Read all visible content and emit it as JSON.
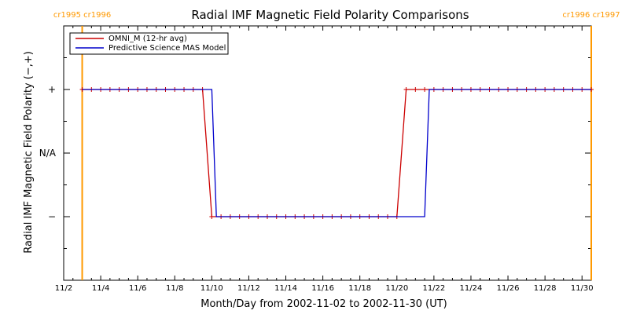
{
  "chart_data": {
    "type": "line",
    "title": "Radial IMF Magnetic Field Polarity Comparisons",
    "xlabel": "Month/Day from 2002-11-02 to 2002-11-30 (UT)",
    "ylabel": "Radial IMF Magnetic Field Polarity (−,+)",
    "x_range": [
      "2002-11-02",
      "2002-11-30"
    ],
    "x_ticks": [
      "11/2",
      "11/4",
      "11/6",
      "11/8",
      "11/10",
      "11/12",
      "11/14",
      "11/16",
      "11/18",
      "11/20",
      "11/22",
      "11/24",
      "11/26",
      "11/28",
      "11/30"
    ],
    "y_categories": [
      "−",
      "N/A",
      "+"
    ],
    "y_values": [
      -1,
      0,
      1
    ],
    "ylim": [
      -2,
      2
    ],
    "legend": {
      "position": "top-left"
    },
    "carrington_markers": [
      {
        "label": "cr1995 cr1996",
        "date": "2002-11-03 00:00",
        "color": "#ff9900"
      },
      {
        "label": "cr1996 cr1997",
        "date": "2002-11-30 12:00",
        "color": "#ff9900"
      }
    ],
    "series": [
      {
        "name": "OMNI_M (12-hr avg)",
        "color": "#cc0000",
        "markers": "plus",
        "points": [
          [
            "2002-11-03 00:00",
            1
          ],
          [
            "2002-11-03 12:00",
            1
          ],
          [
            "2002-11-04 00:00",
            1
          ],
          [
            "2002-11-04 12:00",
            1
          ],
          [
            "2002-11-05 00:00",
            1
          ],
          [
            "2002-11-05 12:00",
            1
          ],
          [
            "2002-11-06 00:00",
            1
          ],
          [
            "2002-11-06 12:00",
            1
          ],
          [
            "2002-11-07 00:00",
            1
          ],
          [
            "2002-11-07 12:00",
            1
          ],
          [
            "2002-11-08 00:00",
            1
          ],
          [
            "2002-11-08 12:00",
            1
          ],
          [
            "2002-11-09 00:00",
            1
          ],
          [
            "2002-11-09 12:00",
            1
          ],
          [
            "2002-11-10 00:00",
            -1
          ],
          [
            "2002-11-10 12:00",
            -1
          ],
          [
            "2002-11-11 00:00",
            -1
          ],
          [
            "2002-11-11 12:00",
            -1
          ],
          [
            "2002-11-12 00:00",
            -1
          ],
          [
            "2002-11-12 12:00",
            -1
          ],
          [
            "2002-11-13 00:00",
            -1
          ],
          [
            "2002-11-13 12:00",
            -1
          ],
          [
            "2002-11-14 00:00",
            -1
          ],
          [
            "2002-11-14 12:00",
            -1
          ],
          [
            "2002-11-15 00:00",
            -1
          ],
          [
            "2002-11-15 12:00",
            -1
          ],
          [
            "2002-11-16 00:00",
            -1
          ],
          [
            "2002-11-16 12:00",
            -1
          ],
          [
            "2002-11-17 00:00",
            -1
          ],
          [
            "2002-11-17 12:00",
            -1
          ],
          [
            "2002-11-18 00:00",
            -1
          ],
          [
            "2002-11-18 12:00",
            -1
          ],
          [
            "2002-11-19 00:00",
            -1
          ],
          [
            "2002-11-19 12:00",
            -1
          ],
          [
            "2002-11-20 00:00",
            -1
          ],
          [
            "2002-11-20 12:00",
            1
          ],
          [
            "2002-11-21 00:00",
            1
          ],
          [
            "2002-11-21 12:00",
            1
          ],
          [
            "2002-11-22 00:00",
            1
          ],
          [
            "2002-11-22 12:00",
            1
          ],
          [
            "2002-11-23 00:00",
            1
          ],
          [
            "2002-11-23 12:00",
            1
          ],
          [
            "2002-11-24 00:00",
            1
          ],
          [
            "2002-11-24 12:00",
            1
          ],
          [
            "2002-11-25 00:00",
            1
          ],
          [
            "2002-11-25 12:00",
            1
          ],
          [
            "2002-11-26 00:00",
            1
          ],
          [
            "2002-11-26 12:00",
            1
          ],
          [
            "2002-11-27 00:00",
            1
          ],
          [
            "2002-11-27 12:00",
            1
          ],
          [
            "2002-11-28 00:00",
            1
          ],
          [
            "2002-11-28 12:00",
            1
          ],
          [
            "2002-11-29 00:00",
            1
          ],
          [
            "2002-11-29 12:00",
            1
          ],
          [
            "2002-11-30 00:00",
            1
          ],
          [
            "2002-11-30 12:00",
            1
          ]
        ]
      },
      {
        "name": "Predictive Science MAS Model",
        "color": "#0000cc",
        "markers": "none",
        "points": [
          [
            "2002-11-03 00:00",
            1
          ],
          [
            "2002-11-10 00:00",
            1
          ],
          [
            "2002-11-10 06:00",
            -1
          ],
          [
            "2002-11-21 12:00",
            -1
          ],
          [
            "2002-11-21 18:00",
            1
          ],
          [
            "2002-11-30 12:00",
            1
          ]
        ]
      }
    ]
  }
}
